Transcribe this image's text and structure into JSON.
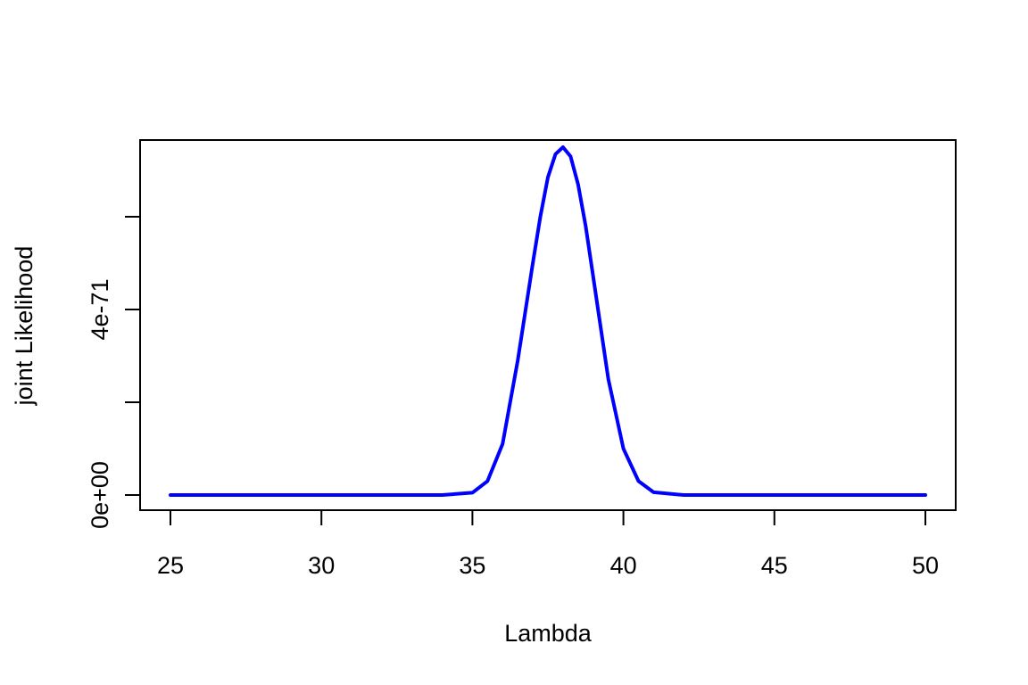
{
  "chart_data": {
    "type": "line",
    "title": "",
    "xlabel": "Lambda",
    "ylabel": "joint Likelihood",
    "xlim": [
      25,
      50
    ],
    "ylim": [
      0,
      7.6e-71
    ],
    "x_ticks": [
      25,
      30,
      35,
      40,
      45,
      50
    ],
    "x_tick_labels": [
      "25",
      "30",
      "35",
      "40",
      "45",
      "50"
    ],
    "y_ticks": [
      0,
      2e-71,
      4e-71,
      6e-71
    ],
    "y_tick_labels": [
      "0e+00",
      "",
      "4e-71",
      ""
    ],
    "grid": false,
    "series": [
      {
        "color": "#0000ff",
        "x": [
          25,
          26,
          27,
          28,
          29,
          30,
          31,
          32,
          33,
          34,
          35,
          35.5,
          36,
          36.5,
          37,
          37.25,
          37.5,
          37.75,
          38,
          38.25,
          38.5,
          38.75,
          39,
          39.5,
          40,
          40.5,
          41,
          42,
          43,
          44,
          45,
          46,
          47,
          48,
          49,
          50
        ],
        "y": [
          0,
          0,
          0,
          0,
          0,
          0,
          0,
          0,
          0,
          0,
          5e-73,
          3e-72,
          1.1e-71,
          2.9e-71,
          5e-71,
          6e-71,
          6.85e-71,
          7.35e-71,
          7.5e-71,
          7.3e-71,
          6.7e-71,
          5.8e-71,
          4.7e-71,
          2.5e-71,
          1e-71,
          3e-72,
          6e-73,
          0,
          0,
          0,
          0,
          0,
          0,
          0,
          0,
          0
        ]
      }
    ]
  }
}
